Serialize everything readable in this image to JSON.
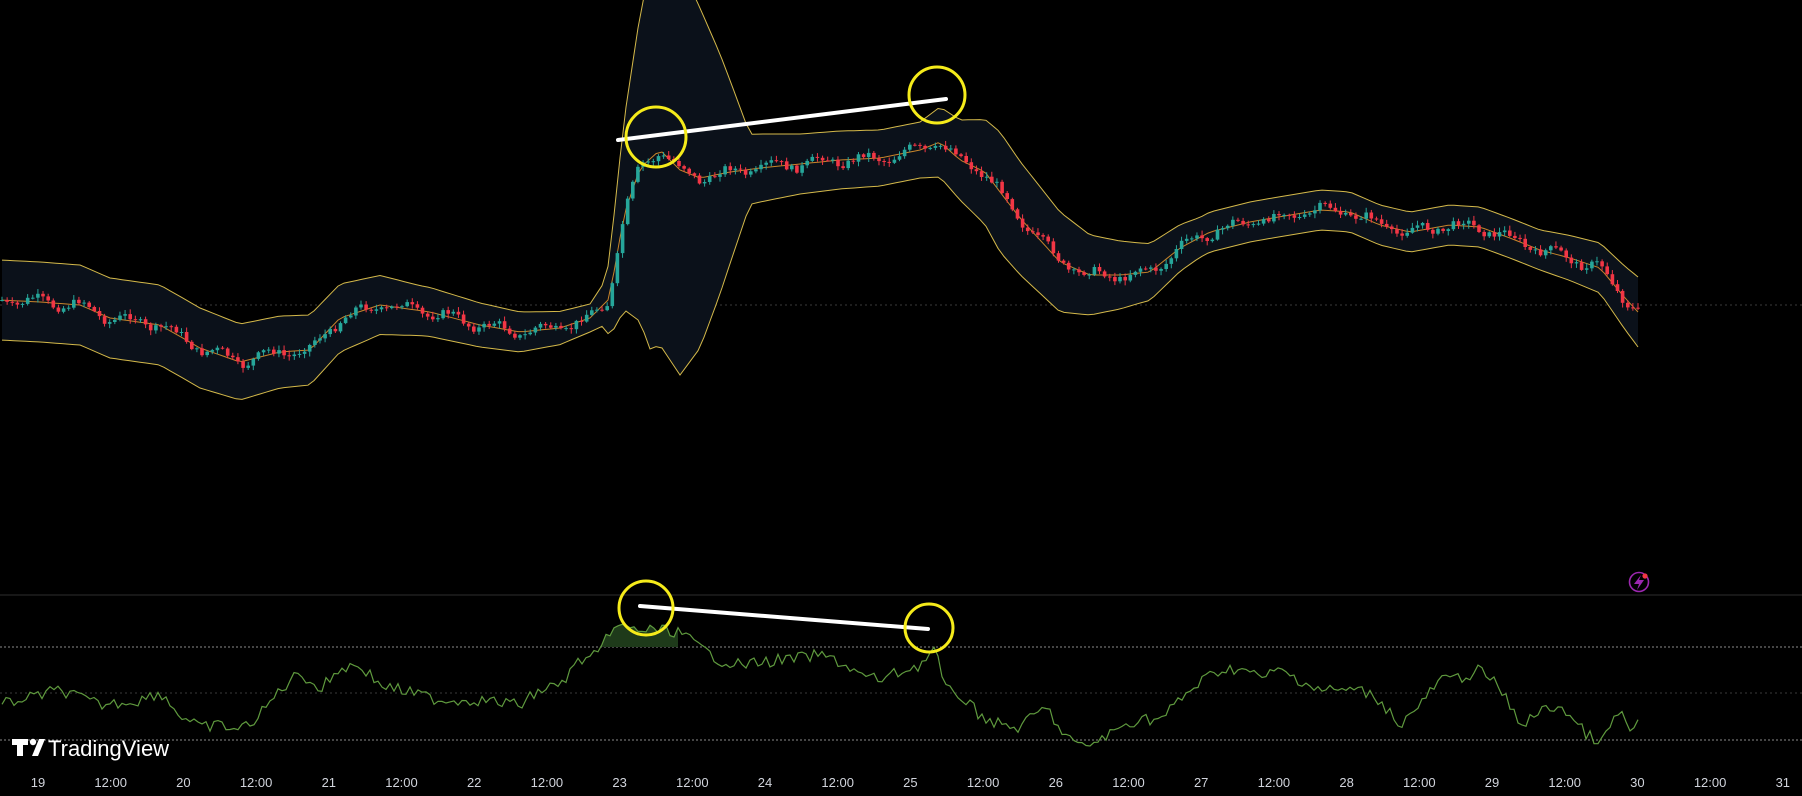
{
  "branding": {
    "logo_text": "TradingView",
    "logo_icon": "tradingview-logo-icon"
  },
  "chart_data": {
    "type": "candlestick",
    "x_ticks": [
      "19",
      "12:00",
      "20",
      "12:00",
      "21",
      "12:00",
      "22",
      "12:00",
      "23",
      "12:00",
      "24",
      "12:00",
      "25",
      "12:00",
      "26",
      "12:00",
      "27",
      "12:00",
      "28",
      "12:00",
      "29",
      "12:00",
      "30",
      "12:00",
      "31"
    ],
    "colors": {
      "up": "#26a69a",
      "down": "#f23645",
      "band_line": "#d4b94a",
      "band_basis": "#c8842a",
      "band_fill": "#0b111a",
      "indicator_line": "#5f9a3e",
      "indicator_fill": "#1e3a1a",
      "annotation_circle": "#f5eb1a",
      "trend_line": "#ffffff",
      "alert_icon": "#9c27b0"
    },
    "indicators": {
      "price_pane": "Bollinger Bands",
      "lower_pane": "oscillator"
    },
    "annotations": {
      "price_divergence": "higher high",
      "oscillator_divergence": "lower high"
    },
    "alert_icon": "lightning-alert-icon"
  }
}
